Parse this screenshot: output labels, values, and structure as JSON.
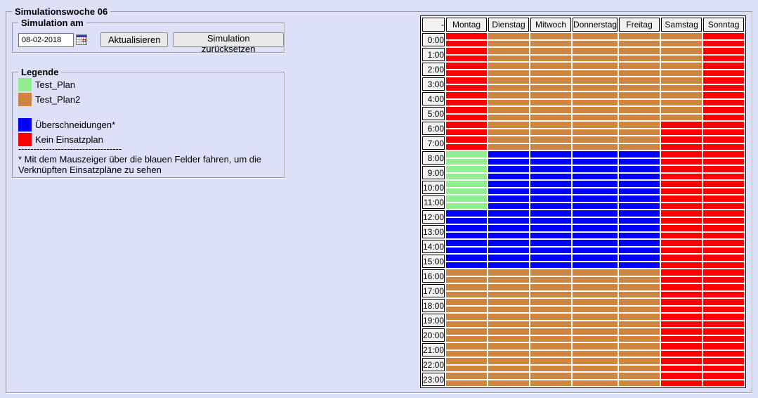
{
  "window": {
    "title": "Simulationswoche 06"
  },
  "simulation_panel": {
    "title": "Simulation am",
    "date_value": "08-02-2018",
    "calendar_icon": "date-picker-calendar",
    "buttons": {
      "refresh": "Aktualisieren",
      "reset": "Simulation zurücksetzen"
    }
  },
  "legend": {
    "title": "Legende",
    "items": [
      {
        "label": "Test_Plan",
        "color": "#90ee90",
        "gap_above": false
      },
      {
        "label": "Test_Plan2",
        "color": "#cd853f",
        "gap_above": false
      },
      {
        "label": "Überschneidungen*",
        "color": "#0000ff",
        "gap_above": true
      },
      {
        "label": "Kein Einsatzplan",
        "color": "#ff0000",
        "gap_above": false
      }
    ],
    "divider": "----------------------------------",
    "note_line1": "* Mit dem Mauszeiger über die blauen Felder fahren, um die",
    "note_line2": "Verknüpften Einsatzpläne zu sehen"
  },
  "schedule": {
    "corner_label": "-",
    "hours": [
      "0:00",
      "1:00",
      "2:00",
      "3:00",
      "4:00",
      "5:00",
      "6:00",
      "7:00",
      "8:00",
      "9:00",
      "10:00",
      "11:00",
      "12:00",
      "13:00",
      "14:00",
      "15:00",
      "16:00",
      "17:00",
      "18:00",
      "19:00",
      "20:00",
      "21:00",
      "22:00",
      "23:00"
    ],
    "color_codes": {
      "G": {
        "hex": "#90ee90",
        "meaning": "Test_Plan"
      },
      "T": {
        "hex": "#cd853f",
        "meaning": "Test_Plan2"
      },
      "B": {
        "hex": "#0000ff",
        "meaning": "Überschneidungen"
      },
      "R": {
        "hex": "#ff0000",
        "meaning": "Kein Einsatzplan"
      }
    },
    "days": [
      {
        "name": "Montag",
        "slots": "RRRRRRRRGGGGBBBBTTTTTTTT"
      },
      {
        "name": "Dienstag",
        "slots": "TTTTTTTTBBBBBBBBTTTTTTTT"
      },
      {
        "name": "Mitwoch",
        "slots": "TTTTTTTTBBBBBBBBTTTTTTTT"
      },
      {
        "name": "Donnerstag",
        "slots": "TTTTTTTTBBBBBBBBTTTTTTTT"
      },
      {
        "name": "Freitag",
        "slots": "TTTTTTTTBBBBBBBBTTTTTTTT"
      },
      {
        "name": "Samstag",
        "slots": "TTTTTTRRRRRRRRRRRRRRRRRR"
      },
      {
        "name": "Sonntag",
        "slots": "RRRRRRRRRRRRRRRRRRRRRRRR"
      }
    ]
  }
}
